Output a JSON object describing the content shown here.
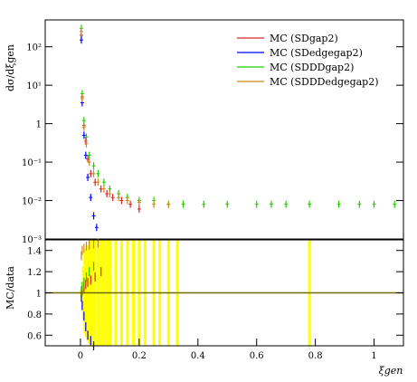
{
  "chart_data": [
    {
      "type": "line",
      "panel": "upper",
      "ylabel": "dσ/dξgen",
      "yscale": "log",
      "ylim": [
        0.001,
        500
      ],
      "xlim": [
        -0.12,
        1.1
      ],
      "y_ticks": [
        "10⁻³",
        "10⁻²",
        "10⁻¹",
        "1",
        "10¹",
        "10²"
      ],
      "legend_placement": "top-right",
      "series": [
        {
          "name": "MC (SDgap2)",
          "color": "#d62728",
          "x": [
            0.003,
            0.006,
            0.012,
            0.018,
            0.025,
            0.035,
            0.05,
            0.07,
            0.09,
            0.11,
            0.14,
            0.17,
            0.2
          ],
          "y": [
            200,
            5,
            0.9,
            0.35,
            0.12,
            0.05,
            0.03,
            0.02,
            0.015,
            0.012,
            0.01,
            0.008,
            0.006
          ]
        },
        {
          "name": "MC (SDedgegap2)",
          "color": "#0000ff",
          "x": [
            0.003,
            0.006,
            0.012,
            0.018,
            0.025,
            0.035,
            0.045,
            0.055
          ],
          "y": [
            150,
            3.5,
            0.5,
            0.15,
            0.04,
            0.012,
            0.004,
            0.002
          ]
        },
        {
          "name": "MC (SDDDgap2)",
          "color": "#22cc00",
          "x": [
            0.003,
            0.006,
            0.012,
            0.02,
            0.03,
            0.045,
            0.06,
            0.08,
            0.1,
            0.13,
            0.16,
            0.2,
            0.25,
            0.3,
            0.35,
            0.42,
            0.5,
            0.6,
            0.65,
            0.7,
            0.78,
            0.88,
            0.95,
            1.0,
            1.07
          ],
          "y": [
            300,
            6,
            1.2,
            0.45,
            0.15,
            0.08,
            0.05,
            0.03,
            0.02,
            0.015,
            0.012,
            0.01,
            0.01,
            0.008,
            0.008,
            0.008,
            0.008,
            0.008,
            0.008,
            0.008,
            0.008,
            0.008,
            0.008,
            0.008,
            0.008
          ]
        },
        {
          "name": "MC (SDDDedgegap2)",
          "color": "#cc8822",
          "x": [
            0.003,
            0.006,
            0.012,
            0.02,
            0.03,
            0.045,
            0.06,
            0.08,
            0.1,
            0.13,
            0.16,
            0.2,
            0.25,
            0.3
          ],
          "y": [
            250,
            4.5,
            0.8,
            0.3,
            0.1,
            0.05,
            0.03,
            0.02,
            0.015,
            0.012,
            0.01,
            0.009,
            0.008,
            0.008
          ]
        }
      ]
    },
    {
      "type": "line",
      "panel": "lower",
      "ylabel": "MC/data",
      "xlabel": "ξgen",
      "ylim": [
        0.5,
        1.5
      ],
      "xlim": [
        -0.12,
        1.1
      ],
      "y_ticks": [
        "0.6",
        "0.8",
        "1",
        "1.2",
        "1.4"
      ],
      "x_ticks": [
        "0",
        "0.2",
        "0.4",
        "0.6",
        "0.8",
        "1"
      ],
      "reference_line": 1,
      "band_color": "#ffff00",
      "band": {
        "x": [
          0.003,
          0.006,
          0.01,
          0.015,
          0.02,
          0.025,
          0.03,
          0.035,
          0.04,
          0.05,
          0.06,
          0.07,
          0.08,
          0.09,
          0.1,
          0.12,
          0.14,
          0.16,
          0.18,
          0.2,
          0.22,
          0.25,
          0.27,
          0.3,
          0.33,
          0.78
        ],
        "low": [
          0.97,
          0.9,
          0.75,
          0.62,
          0.58,
          0.55,
          0.52,
          0.5,
          0.5,
          0.5,
          0.5,
          0.5,
          0.5,
          0.5,
          0.5,
          0.5,
          0.5,
          0.5,
          0.5,
          0.5,
          0.5,
          0.5,
          0.5,
          0.5,
          0.5,
          0.5
        ],
        "high": [
          1.03,
          1.1,
          1.25,
          1.38,
          1.42,
          1.45,
          1.48,
          1.5,
          1.5,
          1.5,
          1.5,
          1.5,
          1.5,
          1.5,
          1.5,
          1.5,
          1.5,
          1.5,
          1.5,
          1.5,
          1.5,
          1.5,
          1.5,
          1.5,
          1.5,
          1.5
        ]
      },
      "series": [
        {
          "name": "MC (SDgap2)",
          "color": "#d62728",
          "x": [
            0.003,
            0.006,
            0.012,
            0.018,
            0.025,
            0.035,
            0.05,
            0.07
          ],
          "y": [
            1.0,
            1.02,
            1.05,
            1.08,
            1.1,
            1.12,
            1.15,
            1.2
          ]
        },
        {
          "name": "MC (SDedgegap2)",
          "color": "#0000ff",
          "x": [
            0.003,
            0.006,
            0.012,
            0.018,
            0.025,
            0.035,
            0.045
          ],
          "y": [
            0.96,
            0.88,
            0.78,
            0.68,
            0.6,
            0.55,
            0.5
          ]
        },
        {
          "name": "MC (SDDDgap2)",
          "color": "#22cc00",
          "x": [
            0.003,
            0.006,
            0.012,
            0.02,
            0.03,
            0.045
          ],
          "y": [
            1.02,
            1.06,
            1.1,
            1.15,
            1.2,
            1.25
          ]
        },
        {
          "name": "MC (SDDDedgegap2)",
          "color": "#cc8822",
          "x": [
            0.003,
            0.006,
            0.012,
            0.02,
            0.03,
            0.045,
            0.06
          ],
          "y": [
            1.35,
            1.4,
            1.42,
            1.44,
            1.45,
            1.46,
            1.47
          ]
        }
      ]
    }
  ]
}
